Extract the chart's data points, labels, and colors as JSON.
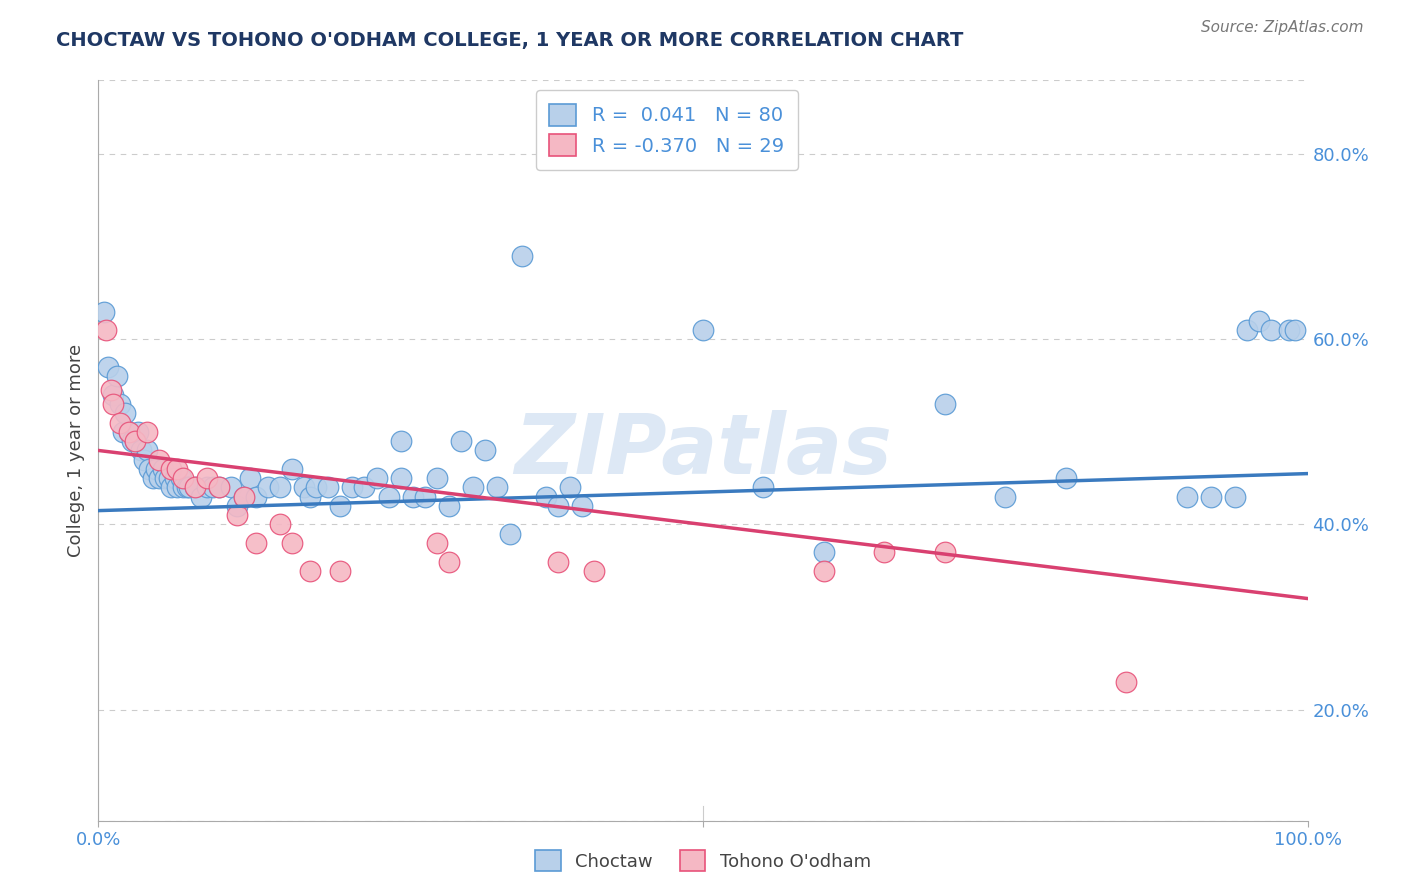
{
  "title": "CHOCTAW VS TOHONO O'ODHAM COLLEGE, 1 YEAR OR MORE CORRELATION CHART",
  "source": "Source: ZipAtlas.com",
  "ylabel": "College, 1 year or more",
  "xlim": [
    0.0,
    1.0
  ],
  "ylim": [
    0.08,
    0.88
  ],
  "yticks": [
    0.2,
    0.4,
    0.6,
    0.8
  ],
  "ytick_labels": [
    "20.0%",
    "40.0%",
    "60.0%",
    "80.0%"
  ],
  "choctaw_R": 0.041,
  "choctaw_N": 80,
  "tohono_R": -0.37,
  "tohono_N": 29,
  "choctaw_color": "#b8d0ea",
  "tohono_color": "#f5b8c4",
  "choctaw_edge_color": "#5b9bd5",
  "tohono_edge_color": "#e8537a",
  "choctaw_line_color": "#3a7abf",
  "tohono_line_color": "#d94070",
  "background_color": "#ffffff",
  "grid_color": "#cccccc",
  "watermark_color": "#dde8f5",
  "tick_label_color": "#4a90d9",
  "ylabel_color": "#444444",
  "title_color": "#1f3864",
  "source_color": "#777777",
  "choctaw_x": [
    0.005,
    0.008,
    0.012,
    0.015,
    0.018,
    0.02,
    0.022,
    0.025,
    0.028,
    0.03,
    0.033,
    0.035,
    0.038,
    0.04,
    0.042,
    0.045,
    0.048,
    0.05,
    0.053,
    0.055,
    0.058,
    0.06,
    0.063,
    0.065,
    0.068,
    0.07,
    0.073,
    0.075,
    0.08,
    0.085,
    0.09,
    0.095,
    0.1,
    0.11,
    0.115,
    0.12,
    0.125,
    0.13,
    0.14,
    0.15,
    0.16,
    0.17,
    0.175,
    0.18,
    0.19,
    0.2,
    0.21,
    0.22,
    0.23,
    0.24,
    0.25,
    0.26,
    0.27,
    0.28,
    0.29,
    0.31,
    0.33,
    0.35,
    0.37,
    0.39,
    0.25,
    0.3,
    0.32,
    0.34,
    0.38,
    0.4,
    0.5,
    0.55,
    0.6,
    0.7,
    0.75,
    0.8,
    0.9,
    0.92,
    0.94,
    0.95,
    0.96,
    0.97,
    0.985,
    0.99
  ],
  "choctaw_y": [
    0.63,
    0.57,
    0.54,
    0.56,
    0.53,
    0.5,
    0.52,
    0.5,
    0.49,
    0.49,
    0.5,
    0.48,
    0.47,
    0.48,
    0.46,
    0.45,
    0.46,
    0.45,
    0.46,
    0.45,
    0.45,
    0.44,
    0.45,
    0.44,
    0.45,
    0.44,
    0.44,
    0.44,
    0.44,
    0.43,
    0.44,
    0.44,
    0.44,
    0.44,
    0.42,
    0.43,
    0.45,
    0.43,
    0.44,
    0.44,
    0.46,
    0.44,
    0.43,
    0.44,
    0.44,
    0.42,
    0.44,
    0.44,
    0.45,
    0.43,
    0.45,
    0.43,
    0.43,
    0.45,
    0.42,
    0.44,
    0.44,
    0.69,
    0.43,
    0.44,
    0.49,
    0.49,
    0.48,
    0.39,
    0.42,
    0.42,
    0.61,
    0.44,
    0.37,
    0.53,
    0.43,
    0.45,
    0.43,
    0.43,
    0.43,
    0.61,
    0.62,
    0.61,
    0.61,
    0.61
  ],
  "tohono_x": [
    0.006,
    0.01,
    0.012,
    0.018,
    0.025,
    0.03,
    0.04,
    0.05,
    0.06,
    0.065,
    0.07,
    0.08,
    0.09,
    0.1,
    0.115,
    0.12,
    0.13,
    0.15,
    0.16,
    0.175,
    0.2,
    0.28,
    0.29,
    0.38,
    0.41,
    0.6,
    0.65,
    0.7,
    0.85
  ],
  "tohono_y": [
    0.61,
    0.545,
    0.53,
    0.51,
    0.5,
    0.49,
    0.5,
    0.47,
    0.46,
    0.46,
    0.45,
    0.44,
    0.45,
    0.44,
    0.41,
    0.43,
    0.38,
    0.4,
    0.38,
    0.35,
    0.35,
    0.38,
    0.36,
    0.36,
    0.35,
    0.35,
    0.37,
    0.37,
    0.23
  ],
  "choctaw_trend_x0": 0.0,
  "choctaw_trend_x1": 1.0,
  "choctaw_trend_y0": 0.415,
  "choctaw_trend_y1": 0.455,
  "tohono_trend_x0": 0.0,
  "tohono_trend_x1": 1.0,
  "tohono_trend_y0": 0.48,
  "tohono_trend_y1": 0.32
}
